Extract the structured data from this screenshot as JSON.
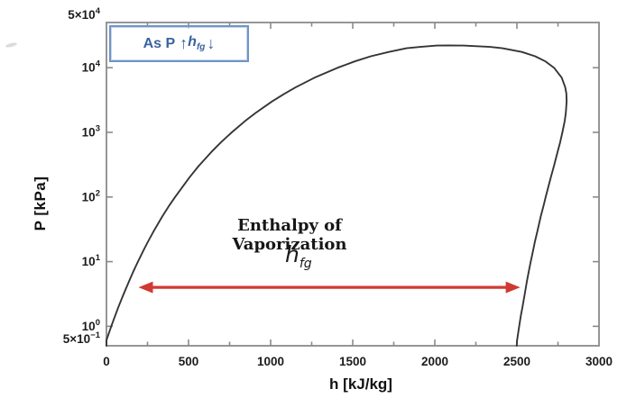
{
  "chart_data": {
    "type": "line",
    "title": "",
    "xlabel": "h [kJ/kg]",
    "ylabel": "P [kPa]",
    "axis_color": "#8a8a8a",
    "tick_label_color": "#1c1c1c",
    "grid": false,
    "x_axis": {
      "scale": "linear",
      "min": 0,
      "max": 3000,
      "major_tick_step": 500,
      "minor_tick_step": 250,
      "tick_labels": [
        "0",
        "500",
        "1000",
        "1500",
        "2000",
        "2500",
        "3000"
      ]
    },
    "y_axis": {
      "scale": "log",
      "min": 0.5,
      "max": 50000,
      "ticks": [
        {
          "value": 50000,
          "prefix": "5×",
          "exp": "4",
          "edge": true
        },
        {
          "value": 10000,
          "prefix": "",
          "exp": "4",
          "edge": false
        },
        {
          "value": 1000,
          "prefix": "",
          "exp": "3",
          "edge": false
        },
        {
          "value": 100,
          "prefix": "",
          "exp": "2",
          "edge": false
        },
        {
          "value": 10,
          "prefix": "",
          "exp": "1",
          "edge": false
        },
        {
          "value": 1,
          "prefix": "",
          "exp": "0",
          "edge": false
        },
        {
          "value": 0.5,
          "prefix": "5×",
          "exp": "−1",
          "edge": true
        }
      ]
    },
    "series": [
      {
        "name": "saturation-dome",
        "color": "#353535",
        "points": [
          [
            0,
            0.5
          ],
          [
            0,
            0.61
          ],
          [
            29,
            1
          ],
          [
            55,
            1.5
          ],
          [
            73,
            2
          ],
          [
            101,
            3
          ],
          [
            138,
            5
          ],
          [
            163,
            7
          ],
          [
            192,
            10
          ],
          [
            226,
            15
          ],
          [
            251,
            20
          ],
          [
            289,
            30
          ],
          [
            340,
            50
          ],
          [
            384,
            75
          ],
          [
            418,
            100
          ],
          [
            505,
            200
          ],
          [
            561,
            300
          ],
          [
            640,
            500
          ],
          [
            697,
            700
          ],
          [
            763,
            1000
          ],
          [
            845,
            1500
          ],
          [
            909,
            2000
          ],
          [
            1008,
            3000
          ],
          [
            1087,
            4000
          ],
          [
            1154,
            5000
          ],
          [
            1267,
            7000
          ],
          [
            1408,
            10000
          ],
          [
            1512,
            12500
          ],
          [
            1610,
            15000
          ],
          [
            1720,
            17500
          ],
          [
            1827,
            20000
          ],
          [
            1911,
            21000
          ],
          [
            2013,
            22000
          ],
          [
            2084,
            22064
          ],
          [
            2173,
            22000
          ],
          [
            2336,
            21000
          ],
          [
            2412,
            20000
          ],
          [
            2530,
            17500
          ],
          [
            2611,
            15000
          ],
          [
            2674,
            12500
          ],
          [
            2726,
            10000
          ],
          [
            2773,
            7000
          ],
          [
            2794,
            5000
          ],
          [
            2801,
            4000
          ],
          [
            2803,
            3000
          ],
          [
            2798,
            2000
          ],
          [
            2791,
            1500
          ],
          [
            2777,
            1000
          ],
          [
            2763,
            700
          ],
          [
            2748,
            500
          ],
          [
            2725,
            300
          ],
          [
            2706,
            200
          ],
          [
            2675,
            100
          ],
          [
            2663,
            75
          ],
          [
            2645,
            50
          ],
          [
            2625,
            30
          ],
          [
            2609,
            20
          ],
          [
            2599,
            15
          ],
          [
            2584,
            10
          ],
          [
            2572,
            7
          ],
          [
            2561,
            5
          ],
          [
            2546,
            3
          ],
          [
            2534,
            2
          ],
          [
            2525,
            1.5
          ],
          [
            2514,
            1
          ],
          [
            2501,
            0.61
          ],
          [
            2499,
            0.5
          ]
        ]
      }
    ],
    "annotations": {
      "note_box": {
        "prefix": "As P",
        "up_arrow": "↑",
        "var_name": "h",
        "var_sub": "fg",
        "down_arrow": "↓",
        "border_color": "#6f95c6",
        "text_color": "#3a62a0"
      },
      "vaporization_label": "Enthalpy of Vaporization",
      "hfg_label": {
        "var_name": "h",
        "var_sub": "fg"
      },
      "hfg_arrow": {
        "type": "double-headed",
        "p_kpa": 4,
        "h_start": 195,
        "h_end": 2520,
        "color": "#d13a31"
      }
    }
  }
}
